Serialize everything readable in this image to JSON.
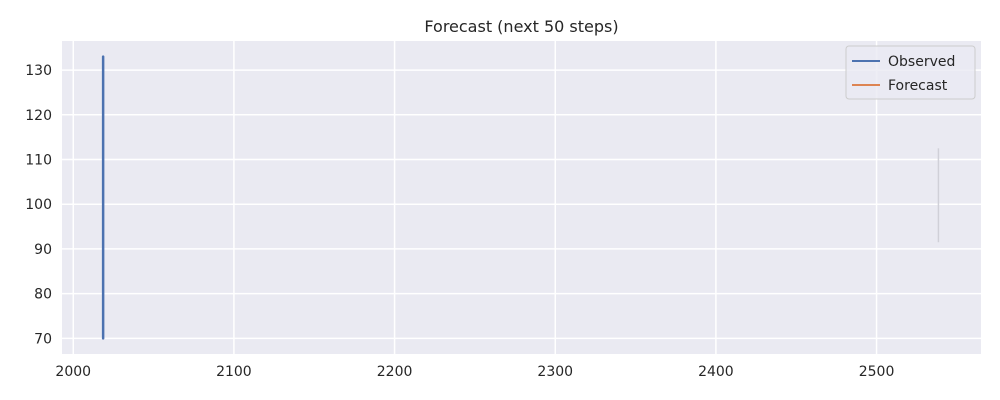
{
  "chart_data": {
    "type": "line",
    "title": "Forecast (next 50 steps)",
    "xlabel": "",
    "ylabel": "",
    "xlim": [
      1993,
      2565
    ],
    "ylim": [
      66.5,
      136.5
    ],
    "x_ticks": [
      2000,
      2100,
      2200,
      2300,
      2400,
      2500
    ],
    "y_ticks": [
      70,
      80,
      90,
      100,
      110,
      120,
      130
    ],
    "grid": true,
    "legend_position": "top-right",
    "series": [
      {
        "name": "Observed",
        "color": "#4c72b0",
        "x": [
          2018.6,
          2018.6,
          2018.6,
          2018.6,
          2018.6,
          2018.6,
          2018.6
        ],
        "y": [
          70,
          85,
          101,
          95,
          118,
          110,
          133
        ]
      },
      {
        "name": "Forecast",
        "color": "#dd8452",
        "x": [],
        "y": []
      }
    ],
    "confidence_band": {
      "color": "#d0d0d8",
      "x": [
        2538.5,
        2538.5
      ],
      "y": [
        91.5,
        112.5
      ]
    }
  },
  "style": {
    "plot_background": "#eaeaf2",
    "grid_color": "#ffffff",
    "text_color": "#262626"
  }
}
